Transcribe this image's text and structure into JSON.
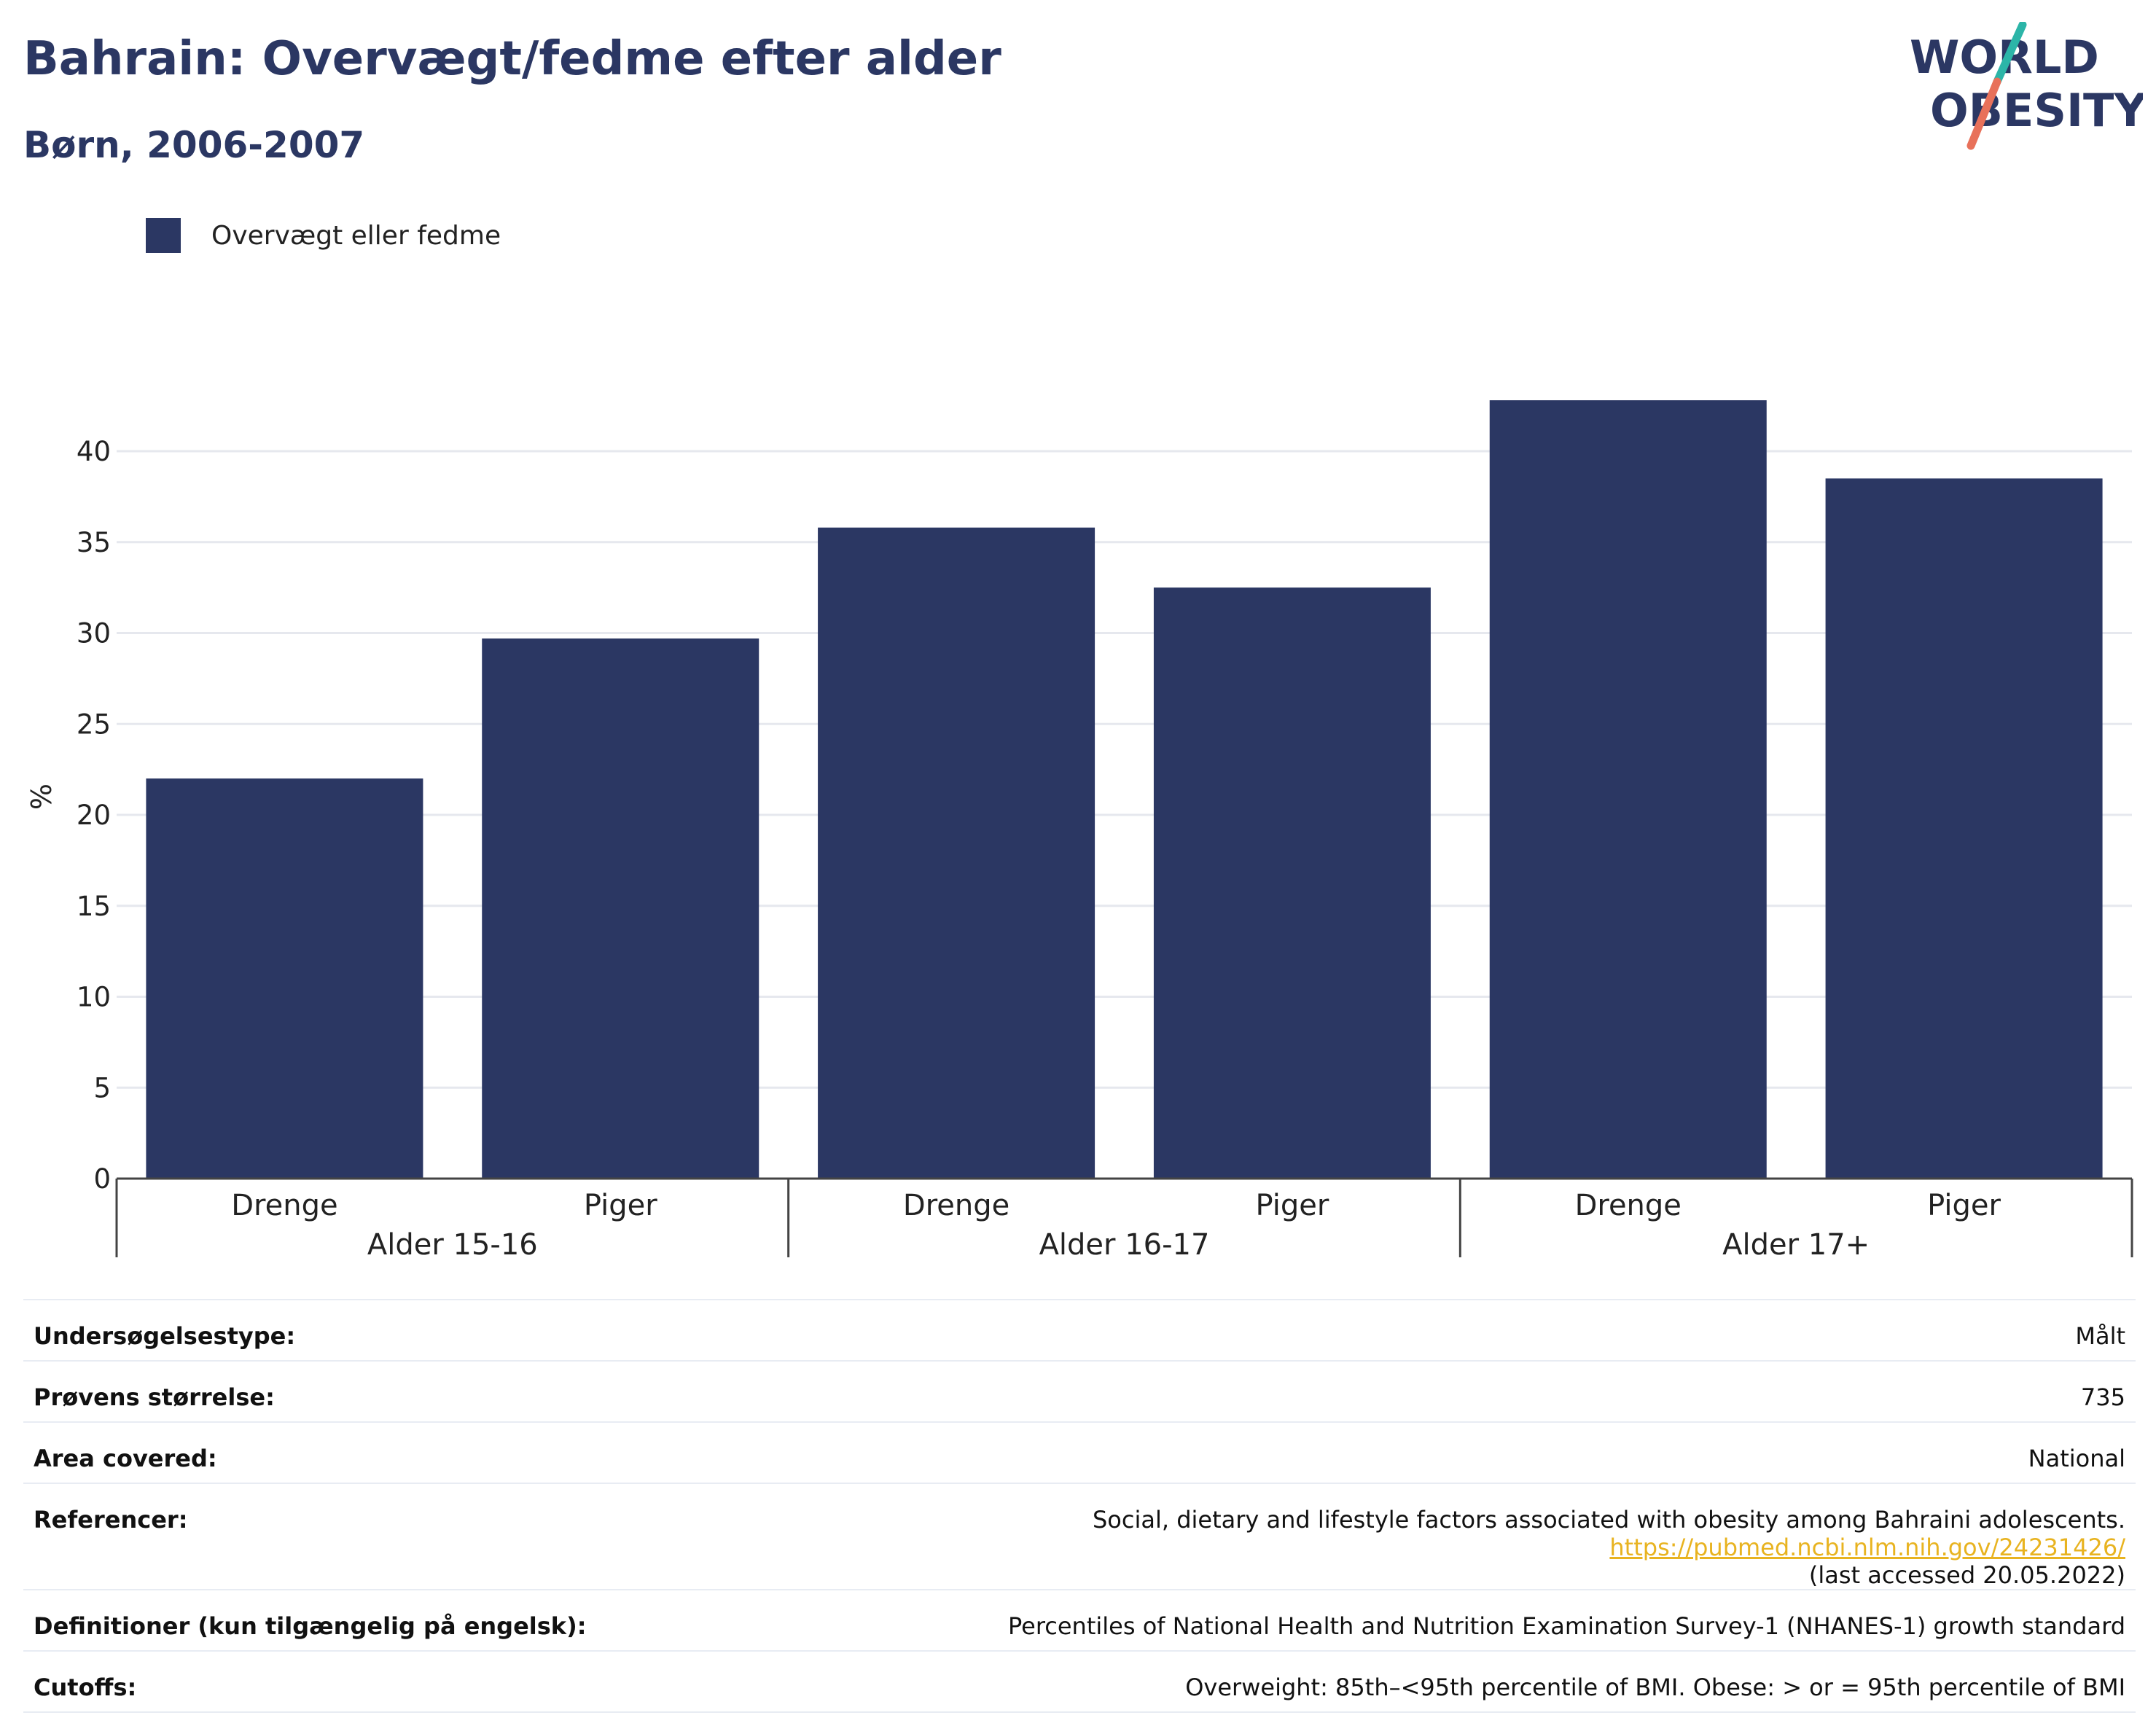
{
  "header": {
    "title": "Bahrain: Overvægt/fedme efter alder",
    "subtitle": "Børn, 2006-2007",
    "logo_text_1": "WORLD",
    "logo_text_2": "OBESITY"
  },
  "colors": {
    "bar": "#2b3763",
    "grid": "#e6e8ee",
    "text": "#2b3763",
    "link": "#e8b320",
    "logo_teal": "#2cb5a8",
    "logo_coral": "#e8715a"
  },
  "chart_data": {
    "type": "bar",
    "legend": "Overvægt eller fedme",
    "legend_position": "top-left",
    "ylabel": "%",
    "ylim": [
      0,
      43
    ],
    "yticks": [
      0,
      5,
      10,
      15,
      20,
      25,
      30,
      35,
      40
    ],
    "grid": true,
    "groups": [
      "Alder 15-16",
      "Alder 16-17",
      "Alder 17+"
    ],
    "categories": [
      "Drenge",
      "Piger",
      "Drenge",
      "Piger",
      "Drenge",
      "Piger"
    ],
    "values": [
      22.0,
      29.7,
      35.8,
      32.5,
      42.8,
      38.5
    ]
  },
  "meta": {
    "survey_type_label": "Undersøgelsestype:",
    "survey_type_value": "Målt",
    "sample_size_label": "Prøvens størrelse:",
    "sample_size_value": "735",
    "area_label": "Area covered:",
    "area_value": "National",
    "references_label": "Referencer:",
    "references_text": "Social, dietary and lifestyle factors associated with obesity among Bahraini adolescents. ",
    "references_link": "https://pubmed.ncbi.nlm.nih.gov/24231426/",
    "references_accessed": "(last accessed 20.05.2022)",
    "definitions_label": "Definitioner (kun tilgængelig på engelsk):",
    "definitions_value": "Percentiles of National Health and Nutrition Examination Survey-1 (NHANES-1) growth standard",
    "cutoffs_label": "Cutoffs:",
    "cutoffs_value": "Overweight: 85th–<95th percentile of BMI. Obese: > or = 95th percentile of BMI"
  }
}
